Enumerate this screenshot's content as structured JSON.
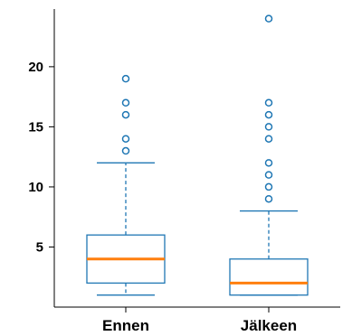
{
  "chart_data": {
    "type": "box",
    "categories": [
      "Ennen",
      "Jälkeen"
    ],
    "ylim": [
      0,
      24.8
    ],
    "yticks": [
      5,
      10,
      15,
      20
    ],
    "ytick_labels": [
      "5",
      "10",
      "15",
      "20"
    ],
    "title": "",
    "xlabel": "",
    "ylabel": "",
    "grid": false,
    "colors": {
      "box": "#1f77b4",
      "median": "#ff7f0e",
      "axis": "#000000"
    },
    "boxes": [
      {
        "category": "Ennen",
        "whisker_low": 1,
        "q1": 2,
        "median": 4,
        "q3": 6,
        "whisker_high": 12,
        "fliers": [
          13,
          14,
          16,
          17,
          19
        ]
      },
      {
        "category": "Jälkeen",
        "whisker_low": 1,
        "q1": 1,
        "median": 2,
        "q3": 4,
        "whisker_high": 8,
        "fliers": [
          9,
          10,
          11,
          12,
          14,
          15,
          16,
          17,
          24
        ]
      }
    ]
  }
}
